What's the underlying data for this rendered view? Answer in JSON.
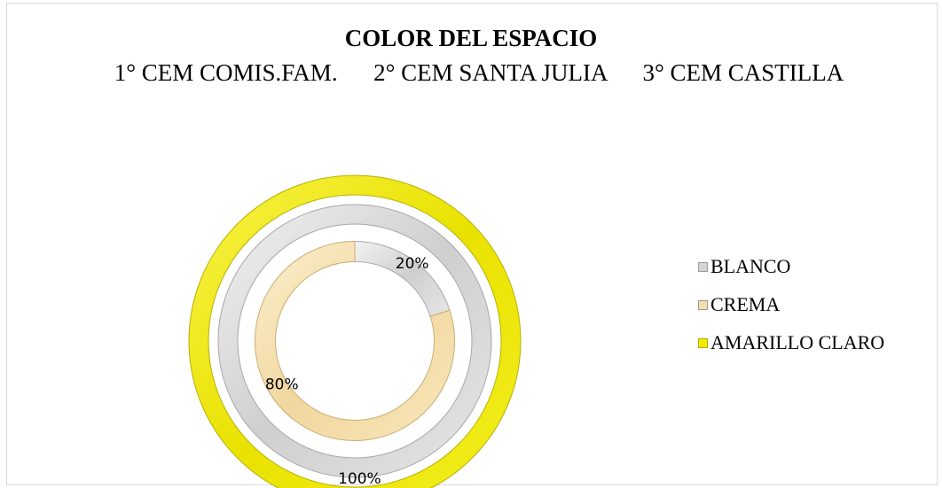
{
  "chart_data": {
    "type": "donut",
    "title": "COLOR DEL ESPACIO",
    "subtitle": "1° CEM COMIS.FAM.      2° CEM SANTA JULIA      3° CEM CASTILLA",
    "rings": [
      {
        "name": "1° CEM COMIS.FAM.",
        "slices": [
          {
            "category": "BLANCO",
            "value": 20,
            "label": "20%"
          },
          {
            "category": "CREMA",
            "value": 80,
            "label": "80%"
          }
        ]
      },
      {
        "name": "2° CEM SANTA JULIA",
        "slices": [
          {
            "category": "BLANCO",
            "value": 100,
            "label": "100%"
          }
        ]
      },
      {
        "name": "3° CEM CASTILLA",
        "slices": [
          {
            "category": "AMARILLO CLARO",
            "value": 100,
            "label": "100%"
          }
        ]
      }
    ],
    "legend": {
      "placement": "right",
      "entries": [
        {
          "label": "BLANCO",
          "color": "#d4d4d4"
        },
        {
          "label": "CREMA",
          "color": "#f5deaa"
        },
        {
          "label": "AMARILLO CLARO",
          "color": "#f2ec00"
        }
      ]
    }
  }
}
